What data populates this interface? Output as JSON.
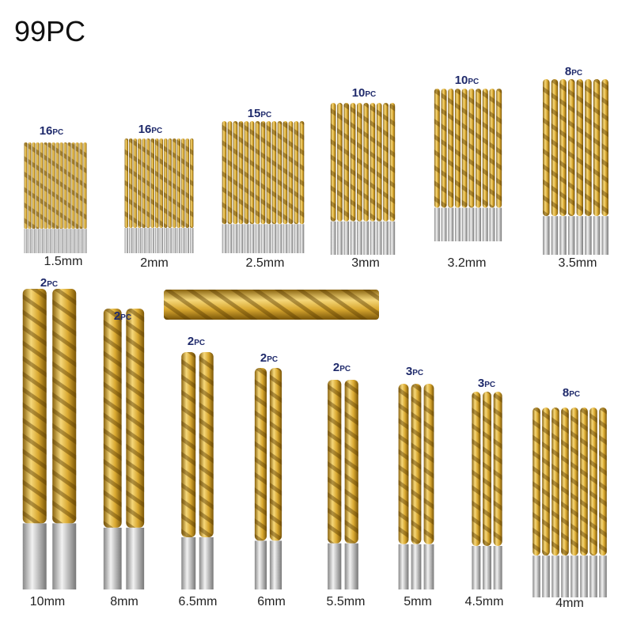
{
  "header": {
    "title": "99PC"
  },
  "groups": [
    {
      "count": 16,
      "unit": "PC",
      "size": "1.5mm"
    },
    {
      "count": 16,
      "unit": "PC",
      "size": "2mm"
    },
    {
      "count": 15,
      "unit": "PC",
      "size": "2.5mm"
    },
    {
      "count": 10,
      "unit": "PC",
      "size": "3mm"
    },
    {
      "count": 10,
      "unit": "PC",
      "size": "3.2mm"
    },
    {
      "count": 8,
      "unit": "PC",
      "size": "3.5mm"
    },
    {
      "count": 2,
      "unit": "PC",
      "size": "10mm"
    },
    {
      "count": 2,
      "unit": "PC",
      "size": "8mm"
    },
    {
      "count": 2,
      "unit": "PC",
      "size": "6.5mm"
    },
    {
      "count": 2,
      "unit": "PC",
      "size": "6mm"
    },
    {
      "count": 2,
      "unit": "PC",
      "size": "5.5mm"
    },
    {
      "count": 3,
      "unit": "PC",
      "size": "5mm"
    },
    {
      "count": 3,
      "unit": "PC",
      "size": "4.5mm"
    },
    {
      "count": 8,
      "unit": "PC",
      "size": "4mm"
    }
  ]
}
